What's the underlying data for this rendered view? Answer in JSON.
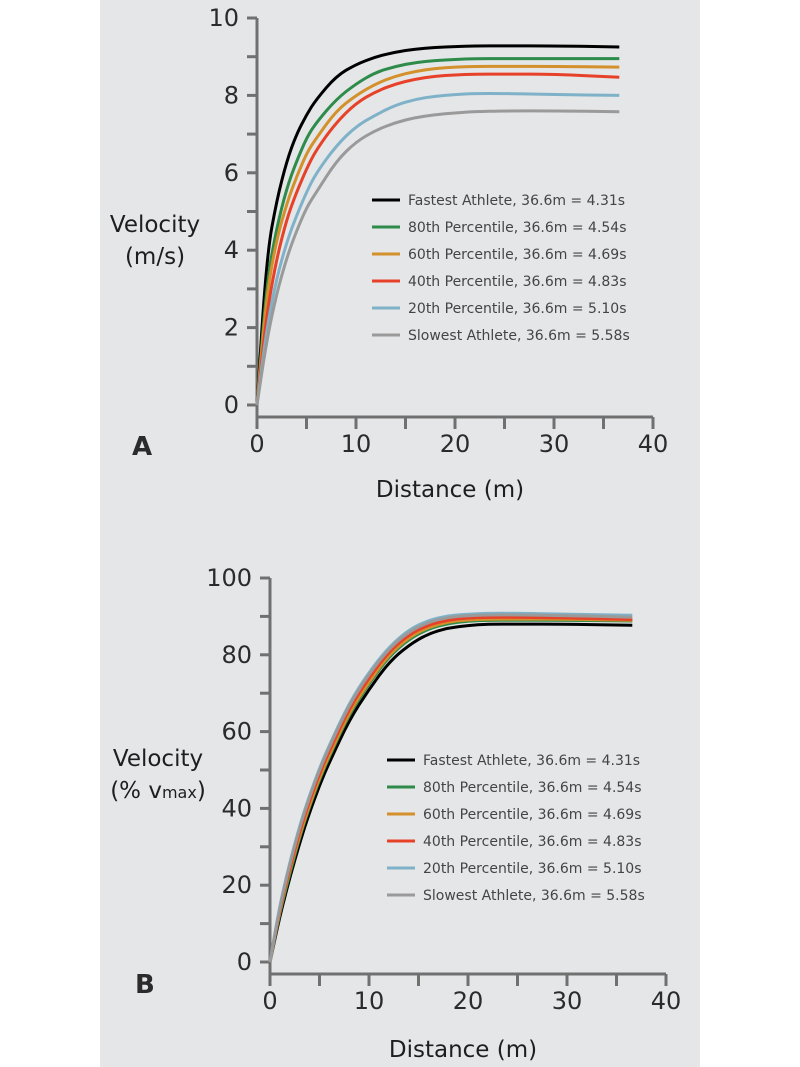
{
  "colors": {
    "background": "#e4e6e8",
    "axis": "#707070"
  },
  "chart_data": [
    {
      "type": "line",
      "panel_label": "A",
      "title": "",
      "xlabel": "Distance (m)",
      "ylabel": [
        "Velocity",
        "(m/s)"
      ],
      "xlim": [
        0,
        40
      ],
      "ylim": [
        0,
        10
      ],
      "x_ticks": [
        0,
        10,
        20,
        30,
        40
      ],
      "y_ticks": [
        0,
        2,
        4,
        6,
        8,
        10
      ],
      "grid": false,
      "legend_position": "center-right",
      "series": [
        {
          "name": "Fastest Athlete, 36.6m = 4.31s",
          "color": "#000000",
          "x": [
            0,
            1,
            2,
            3,
            4,
            5,
            6,
            8,
            10,
            12,
            14,
            16,
            18,
            20,
            22,
            25,
            30,
            36.6
          ],
          "y": [
            0,
            3.9,
            5.3,
            6.3,
            7.0,
            7.5,
            7.9,
            8.5,
            8.8,
            9.0,
            9.12,
            9.2,
            9.24,
            9.26,
            9.28,
            9.28,
            9.28,
            9.25
          ]
        },
        {
          "name": "80th Percentile, 36.6m = 4.54s",
          "color": "#2e8b4a",
          "x": [
            0,
            1,
            2,
            3,
            4,
            5,
            6,
            8,
            10,
            12,
            14,
            16,
            18,
            20,
            22,
            25,
            30,
            36.6
          ],
          "y": [
            0,
            3.2,
            4.6,
            5.6,
            6.3,
            6.9,
            7.3,
            7.9,
            8.3,
            8.6,
            8.75,
            8.85,
            8.9,
            8.93,
            8.95,
            8.95,
            8.95,
            8.95
          ]
        },
        {
          "name": "60th Percentile, 36.6m = 4.69s",
          "color": "#d4902a",
          "x": [
            0,
            1,
            2,
            3,
            4,
            5,
            6,
            8,
            10,
            12,
            14,
            16,
            18,
            20,
            22,
            25,
            30,
            36.6
          ],
          "y": [
            0,
            2.9,
            4.3,
            5.2,
            5.9,
            6.5,
            6.9,
            7.6,
            8.0,
            8.3,
            8.5,
            8.62,
            8.7,
            8.73,
            8.75,
            8.75,
            8.75,
            8.73
          ]
        },
        {
          "name": "40th Percentile, 36.6m = 4.83s",
          "color": "#e8412a",
          "x": [
            0,
            1,
            2,
            3,
            4,
            5,
            6,
            8,
            10,
            12,
            14,
            16,
            18,
            20,
            22,
            25,
            30,
            36.6
          ],
          "y": [
            0,
            2.4,
            3.8,
            4.8,
            5.5,
            6.1,
            6.6,
            7.3,
            7.8,
            8.1,
            8.3,
            8.42,
            8.5,
            8.53,
            8.55,
            8.55,
            8.55,
            8.47
          ]
        },
        {
          "name": "20th Percentile, 36.6m = 5.10s",
          "color": "#7fb2c8",
          "x": [
            0,
            1,
            2,
            3,
            4,
            5,
            6,
            8,
            10,
            12,
            14,
            16,
            18,
            20,
            22,
            25,
            30,
            36.6
          ],
          "y": [
            0,
            2.0,
            3.3,
            4.2,
            4.9,
            5.5,
            6.0,
            6.7,
            7.2,
            7.5,
            7.75,
            7.9,
            7.98,
            8.02,
            8.05,
            8.05,
            8.02,
            8.0
          ]
        },
        {
          "name": "Slowest Athlete, 36.6m = 5.58s",
          "color": "#9a9a9a",
          "x": [
            0,
            1,
            2,
            3,
            4,
            5,
            6,
            8,
            10,
            12,
            14,
            16,
            18,
            20,
            22,
            25,
            30,
            36.6
          ],
          "y": [
            0,
            1.7,
            2.9,
            3.8,
            4.5,
            5.1,
            5.5,
            6.3,
            6.8,
            7.1,
            7.3,
            7.43,
            7.5,
            7.55,
            7.58,
            7.6,
            7.6,
            7.58
          ]
        }
      ]
    },
    {
      "type": "line",
      "panel_label": "B",
      "title": "",
      "xlabel": "Distance (m)",
      "ylabel": [
        "Velocity",
        "(% v",
        "max",
        ")"
      ],
      "xlim": [
        0,
        40
      ],
      "ylim": [
        0,
        100
      ],
      "x_ticks": [
        0,
        10,
        20,
        30,
        40
      ],
      "y_ticks": [
        0,
        20,
        40,
        60,
        80,
        100
      ],
      "grid": false,
      "legend_position": "center-right",
      "series": [
        {
          "name": "Fastest Athlete, 36.6m = 4.31s",
          "color": "#000000",
          "x": [
            0,
            1,
            2,
            3,
            4,
            5,
            6,
            8,
            10,
            12,
            14,
            16,
            18,
            20,
            22,
            25,
            30,
            36.6
          ],
          "y": [
            0,
            12,
            22,
            31,
            39,
            46,
            52,
            63,
            71,
            78,
            82.5,
            85.5,
            87,
            87.6,
            88,
            88,
            88,
            87.7
          ]
        },
        {
          "name": "80th Percentile, 36.6m = 4.54s",
          "color": "#2e8b4a",
          "x": [
            0,
            1,
            2,
            3,
            4,
            5,
            6,
            8,
            10,
            12,
            14,
            16,
            18,
            20,
            22,
            25,
            30,
            36.6
          ],
          "y": [
            0,
            13,
            23,
            32.5,
            40.5,
            47.5,
            53.5,
            64.5,
            72.5,
            79.5,
            84,
            86.8,
            88.2,
            88.8,
            89,
            89,
            89,
            88.8
          ]
        },
        {
          "name": "60th Percentile, 36.6m = 4.69s",
          "color": "#d4902a",
          "x": [
            0,
            1,
            2,
            3,
            4,
            5,
            6,
            8,
            10,
            12,
            14,
            16,
            18,
            20,
            22,
            25,
            30,
            36.6
          ],
          "y": [
            0,
            13.5,
            24,
            33,
            41,
            48,
            54,
            65,
            73,
            80,
            84.5,
            87.2,
            88.6,
            89.1,
            89.3,
            89.3,
            89.3,
            89
          ]
        },
        {
          "name": "40th Percentile, 36.6m = 4.83s",
          "color": "#e8412a",
          "x": [
            0,
            1,
            2,
            3,
            4,
            5,
            6,
            8,
            10,
            12,
            14,
            16,
            18,
            20,
            22,
            25,
            30,
            36.6
          ],
          "y": [
            0,
            14,
            24.5,
            34,
            42,
            49,
            55,
            66,
            74,
            80.8,
            85.2,
            87.8,
            89.1,
            89.6,
            89.8,
            89.8,
            89.6,
            89.2
          ]
        },
        {
          "name": "20th Percentile, 36.6m = 5.10s",
          "color": "#7fb2c8",
          "x": [
            0,
            1,
            2,
            3,
            4,
            5,
            6,
            8,
            10,
            12,
            14,
            16,
            18,
            20,
            22,
            25,
            30,
            36.6
          ],
          "y": [
            0,
            15,
            26,
            35.5,
            43.5,
            50.5,
            56.5,
            67.5,
            75.5,
            82,
            86.5,
            89,
            90.2,
            90.6,
            90.8,
            90.8,
            90.6,
            90.3
          ]
        },
        {
          "name": "Slowest Athlete, 36.6m = 5.58s",
          "color": "#9a9a9a",
          "x": [
            0,
            1,
            2,
            3,
            4,
            5,
            6,
            8,
            10,
            12,
            14,
            16,
            18,
            20,
            22,
            25,
            30,
            36.6
          ],
          "y": [
            0,
            14.5,
            25.5,
            35,
            43,
            50,
            56,
            67,
            75,
            81.5,
            86,
            88.5,
            89.8,
            90.2,
            90.4,
            90.4,
            90.2,
            89.8
          ]
        }
      ]
    }
  ]
}
